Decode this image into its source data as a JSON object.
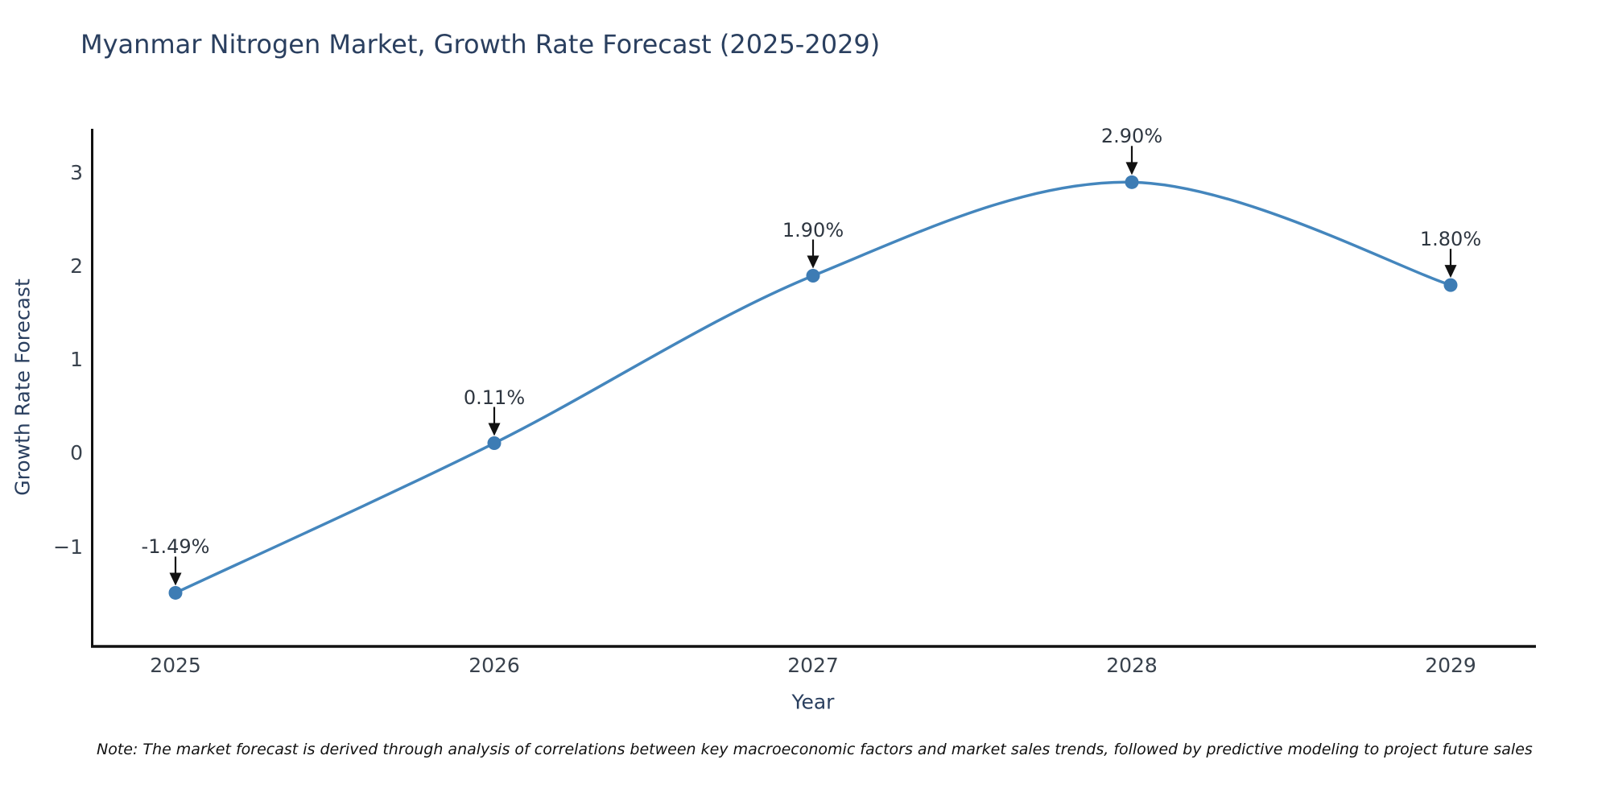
{
  "title": "Myanmar Nitrogen Market, Growth Rate Forecast (2025-2029)",
  "note": "Note: The market forecast is derived through analysis of correlations between key macroeconomic factors and market sales trends, followed by predictive modeling to project future sales",
  "chart_data": {
    "type": "line",
    "title": "Myanmar Nitrogen Market, Growth Rate Forecast (2025-2029)",
    "xlabel": "Year",
    "ylabel": "Growth Rate Forecast",
    "categories": [
      2025,
      2026,
      2027,
      2028,
      2029
    ],
    "values": [
      -1.49,
      0.11,
      1.9,
      2.9,
      1.8
    ],
    "point_labels": [
      "-1.49%",
      "0.11%",
      "1.90%",
      "2.90%",
      "1.80%"
    ],
    "x_tick_labels": [
      "2025",
      "2026",
      "2027",
      "2028",
      "2029"
    ],
    "y_tick_labels": [
      "−1",
      "0",
      "1",
      "2",
      "3"
    ],
    "y_tick_values": [
      -1,
      0,
      1,
      2,
      3
    ],
    "ylim": [
      -2.06,
      3.47
    ],
    "line_shape": "spline",
    "grid": false,
    "legend_position": "none",
    "colors": {
      "line": "#4486bd",
      "marker": "#3d7cb4",
      "axis": "#111111",
      "arrow": "#111111",
      "title_text": "#2a3f5f",
      "tick_text": "#39424d",
      "annotation_text": "#2e3640"
    }
  }
}
